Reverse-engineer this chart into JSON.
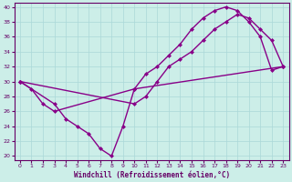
{
  "xlabel": "Windchill (Refroidissement éolien,°C)",
  "xlim": [
    -0.5,
    23.5
  ],
  "ylim": [
    19.5,
    40.5
  ],
  "yticks": [
    20,
    22,
    24,
    26,
    28,
    30,
    32,
    34,
    36,
    38,
    40
  ],
  "xticks": [
    0,
    1,
    2,
    3,
    4,
    5,
    6,
    7,
    8,
    9,
    10,
    11,
    12,
    13,
    14,
    15,
    16,
    17,
    18,
    19,
    20,
    21,
    22,
    23
  ],
  "background_color": "#cceee8",
  "grid_color": "#aad8d8",
  "line_color": "#880088",
  "tick_color": "#660066",
  "line1_x": [
    0,
    1,
    2,
    3,
    10,
    11,
    12,
    13,
    14,
    15,
    16,
    17,
    18,
    19,
    20,
    21,
    22,
    23
  ],
  "line1_y": [
    30,
    29,
    27,
    26,
    29,
    31,
    32,
    33.5,
    35,
    37,
    38.5,
    39.5,
    40,
    39.5,
    38,
    36,
    31.5,
    32
  ],
  "line2_x": [
    0,
    10,
    11,
    12,
    13,
    14,
    15,
    16,
    17,
    18,
    19,
    20,
    21,
    22,
    23
  ],
  "line2_y": [
    30,
    27,
    28,
    30,
    32,
    33,
    34,
    35.5,
    37,
    38,
    39,
    38.5,
    37,
    35.5,
    32
  ],
  "line3_x": [
    0,
    3,
    4,
    5,
    6,
    7,
    8,
    9,
    10,
    23
  ],
  "line3_y": [
    30,
    27,
    25,
    24,
    23,
    21,
    20,
    24,
    29,
    32
  ]
}
